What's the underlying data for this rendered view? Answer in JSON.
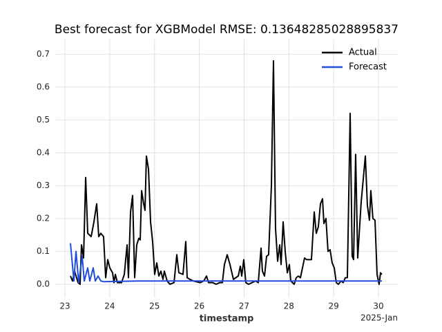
{
  "chart_data": {
    "type": "line",
    "title": "Best forecast for XGBModel RMSE: 0.13648285028895837",
    "x_label": "timestamp",
    "x_offset_label": "2025-Jan",
    "xlim": [
      22.784,
      30.432
    ],
    "xticks": [
      23,
      24,
      25,
      26,
      27,
      28,
      29,
      30
    ],
    "ylim": [
      -0.04,
      0.745
    ],
    "yticks": [
      {
        "value": 0,
        "label": "0.0"
      },
      0.1,
      0.2,
      0.3,
      0.4,
      0.5,
      0.6,
      0.7
    ],
    "grid": true,
    "legend": "upper right",
    "series": [
      {
        "name": "Actual",
        "color": "#000000",
        "x": [
          23.123,
          23.17,
          23.216,
          23.293,
          23.339,
          23.37,
          23.416,
          23.463,
          23.509,
          23.586,
          23.648,
          23.709,
          23.755,
          23.802,
          23.863,
          23.91,
          23.956,
          24.002,
          24.064,
          24.095,
          24.126,
          24.172,
          24.264,
          24.326,
          24.388,
          24.418,
          24.465,
          24.511,
          24.557,
          24.603,
          24.65,
          24.681,
          24.712,
          24.758,
          24.788,
          24.819,
          24.866,
          24.912,
          24.958,
          25.004,
          25.051,
          25.097,
          25.143,
          25.189,
          25.22,
          25.282,
          25.344,
          25.436,
          25.498,
          25.544,
          25.636,
          25.698,
          25.729,
          25.791,
          25.868,
          26.022,
          26.099,
          26.161,
          26.207,
          26.299,
          26.376,
          26.454,
          26.515,
          26.561,
          26.623,
          26.685,
          26.762,
          26.87,
          26.916,
          26.947,
          26.993,
          27.039,
          27.101,
          27.178,
          27.255,
          27.317,
          27.379,
          27.409,
          27.456,
          27.502,
          27.548,
          27.61,
          27.656,
          27.702,
          27.749,
          27.795,
          27.826,
          27.872,
          27.918,
          27.965,
          28.011,
          28.042,
          28.119,
          28.165,
          28.211,
          28.258,
          28.304,
          28.35,
          28.396,
          28.458,
          28.504,
          28.566,
          28.612,
          28.658,
          28.705,
          28.751,
          28.782,
          28.828,
          28.874,
          28.92,
          28.967,
          29.013,
          29.059,
          29.105,
          29.167,
          29.213,
          29.26,
          29.306,
          29.368,
          29.414,
          29.445,
          29.491,
          29.537,
          29.614,
          29.661,
          29.707,
          29.753,
          29.799,
          29.83,
          29.876,
          29.923,
          29.969,
          30.015,
          30.046,
          30.077
        ],
        "values": [
          0.025,
          0.01,
          0.04,
          0.005,
          0.0,
          0.12,
          0.08,
          0.325,
          0.155,
          0.145,
          0.19,
          0.245,
          0.145,
          0.155,
          0.145,
          0.02,
          0.075,
          0.05,
          0.035,
          0.005,
          0.03,
          0.005,
          0.005,
          0.03,
          0.12,
          0.02,
          0.22,
          0.27,
          0.02,
          0.12,
          0.14,
          0.135,
          0.285,
          0.245,
          0.225,
          0.39,
          0.35,
          0.19,
          0.13,
          0.03,
          0.065,
          0.025,
          0.04,
          0.015,
          0.04,
          0.01,
          0.0,
          0.005,
          0.09,
          0.035,
          0.03,
          0.13,
          0.02,
          0.015,
          0.01,
          0.005,
          0.01,
          0.025,
          0.005,
          0.005,
          0.0,
          0.005,
          0.005,
          0.06,
          0.09,
          0.06,
          0.015,
          0.025,
          0.055,
          0.025,
          0.075,
          0.005,
          0.0,
          0.005,
          0.01,
          0.005,
          0.11,
          0.04,
          0.025,
          0.085,
          0.09,
          0.3,
          0.68,
          0.17,
          0.07,
          0.12,
          0.06,
          0.19,
          0.1,
          0.035,
          0.06,
          0.01,
          0.0,
          0.02,
          0.025,
          0.02,
          0.05,
          0.08,
          0.075,
          0.075,
          0.075,
          0.22,
          0.155,
          0.175,
          0.245,
          0.26,
          0.185,
          0.2,
          0.1,
          0.105,
          0.065,
          0.05,
          0.005,
          0.0,
          0.01,
          0.005,
          0.02,
          0.02,
          0.52,
          0.085,
          0.075,
          0.395,
          0.08,
          0.25,
          0.32,
          0.39,
          0.24,
          0.195,
          0.285,
          0.2,
          0.195,
          0.03,
          0.0,
          0.035,
          0.03
        ]
      },
      {
        "name": "Forecast",
        "color": "#1f4ddb",
        "x": [
          23.123,
          23.2,
          23.247,
          23.308,
          23.385,
          23.432,
          23.509,
          23.555,
          23.632,
          23.678,
          23.74,
          23.802,
          23.863,
          24.634,
          26.176,
          27.718,
          29.26,
          30.077
        ],
        "values": [
          0.125,
          0.01,
          0.1,
          0.005,
          0.085,
          0.01,
          0.05,
          0.01,
          0.05,
          0.01,
          0.025,
          0.01,
          0.008,
          0.01,
          0.01,
          0.01,
          0.01,
          0.01
        ]
      }
    ]
  }
}
